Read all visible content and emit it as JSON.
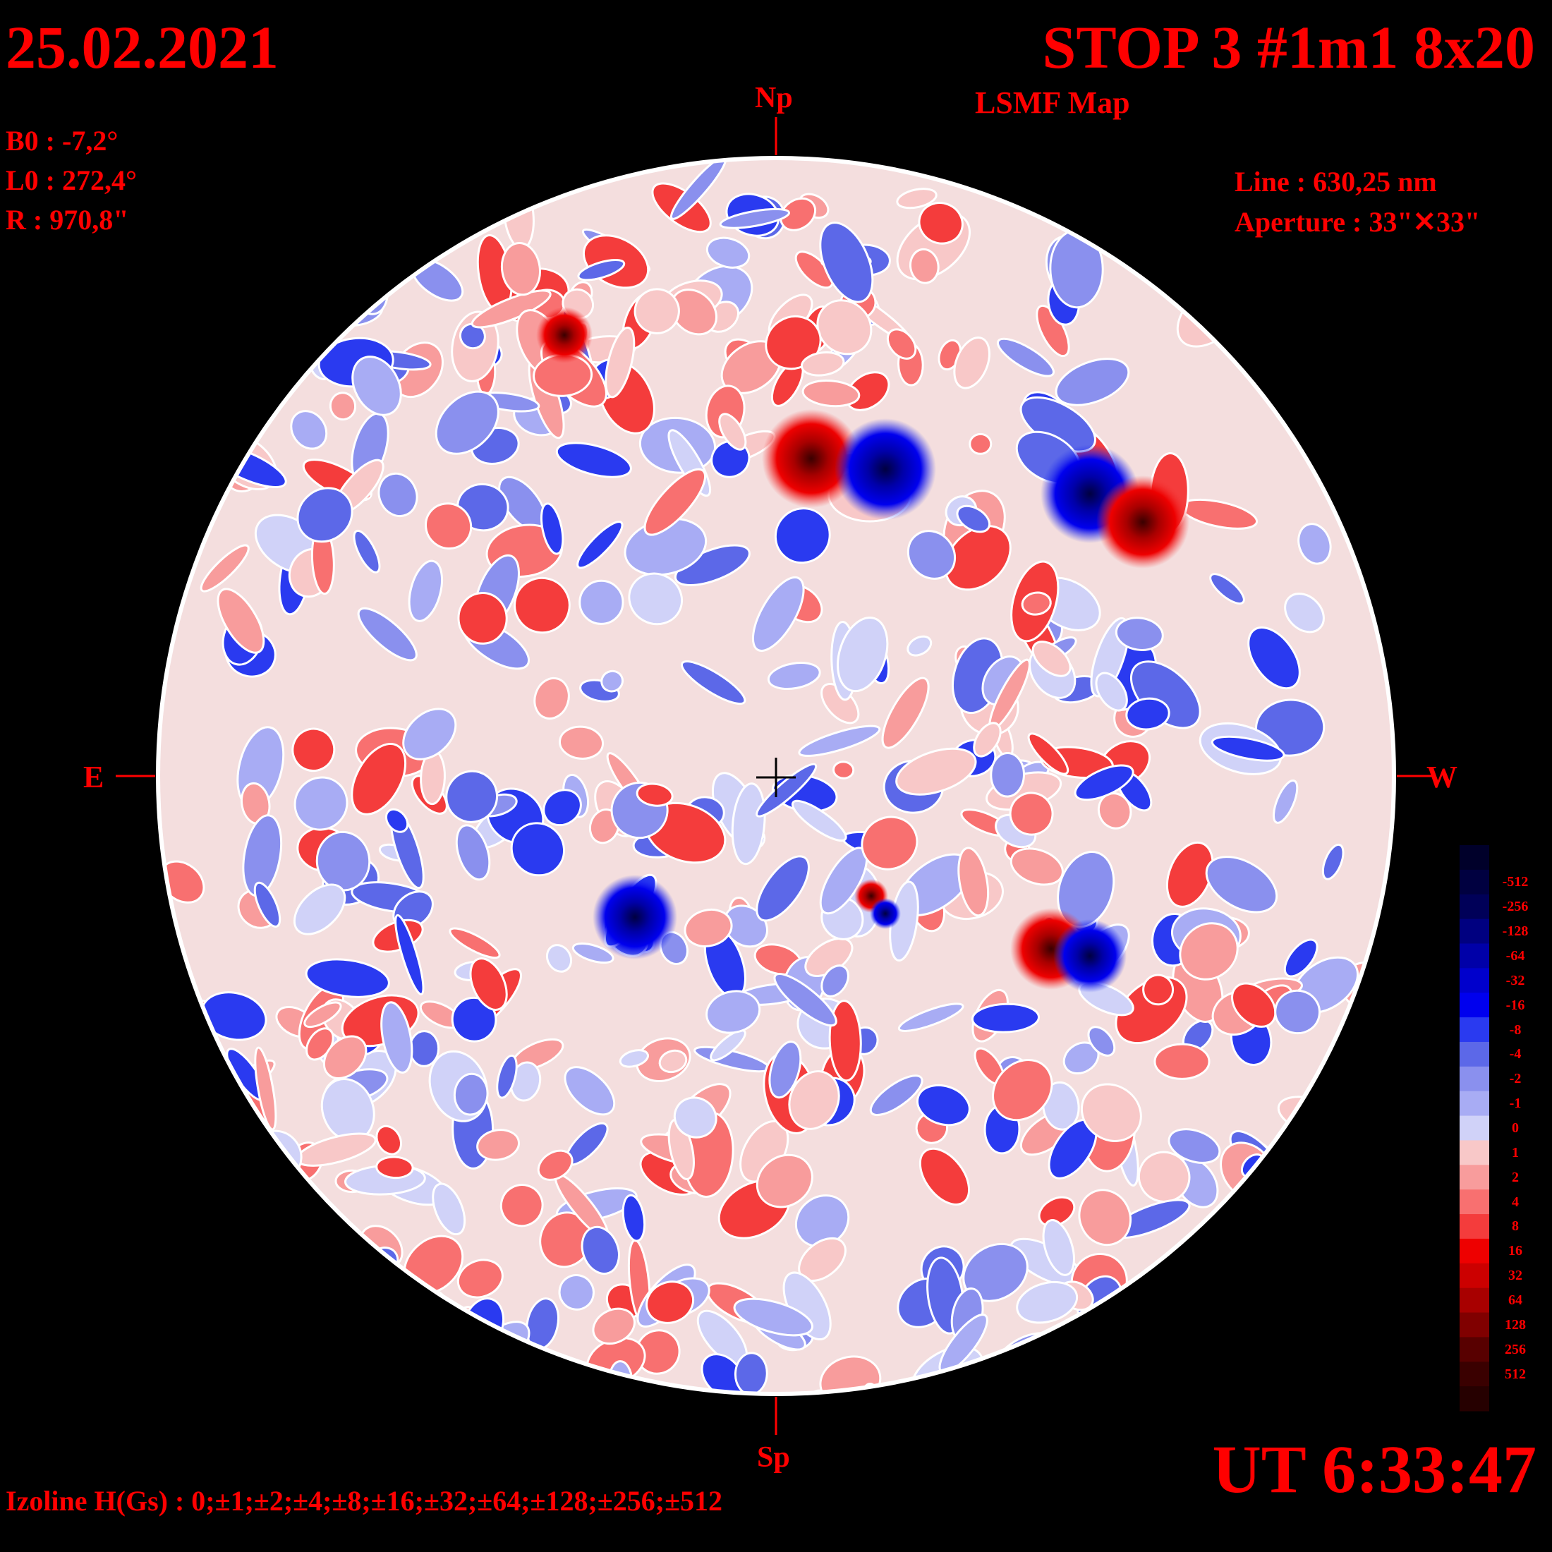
{
  "header": {
    "date": "25.02.2021",
    "title": "STOP 3 #1m1 8x20",
    "subtitle": "LSMF  Map"
  },
  "params": {
    "b0": "B0 : -7,2°",
    "l0": "L0 : 272,4°",
    "radius": "R  : 970,8\"",
    "line": "Line :  630,25 nm",
    "aperture": "Aperture : 33\"✕33\""
  },
  "directions": {
    "north": "Np",
    "south": "Sp",
    "east": "E",
    "west": "W"
  },
  "footer": {
    "ut": "UT 6:33:47",
    "isolines": "Izoline H(Gs) : 0;±1;±2;±4;±8;±16;±32;±64;±128;±256;±512"
  },
  "legend": {
    "levels": [
      {
        "label": "",
        "color": "#00002a"
      },
      {
        "label": "-512",
        "color": "#000040"
      },
      {
        "label": "-256",
        "color": "#000058"
      },
      {
        "label": "-128",
        "color": "#000080"
      },
      {
        "label": "-64",
        "color": "#0000a8"
      },
      {
        "label": "-32",
        "color": "#0000cc"
      },
      {
        "label": "-16",
        "color": "#0000ee"
      },
      {
        "label": "-8",
        "color": "#2a3af0"
      },
      {
        "label": "-4",
        "color": "#5c68e8"
      },
      {
        "label": "-2",
        "color": "#8a90ee"
      },
      {
        "label": "-1",
        "color": "#a8acf4"
      },
      {
        "label": "0",
        "color": "#d0d2f8"
      },
      {
        "label": "1",
        "color": "#f8c8c8"
      },
      {
        "label": "2",
        "color": "#f89c9c"
      },
      {
        "label": "4",
        "color": "#f87070"
      },
      {
        "label": "8",
        "color": "#f43c3c"
      },
      {
        "label": "16",
        "color": "#ee0000"
      },
      {
        "label": "32",
        "color": "#cc0000"
      },
      {
        "label": "64",
        "color": "#a80000"
      },
      {
        "label": "128",
        "color": "#800000"
      },
      {
        "label": "256",
        "color": "#580000"
      },
      {
        "label": "512",
        "color": "#3a0000"
      },
      {
        "label": "",
        "color": "#260000"
      }
    ]
  },
  "colors": {
    "text": "#ff0000",
    "background": "#000000",
    "disk_border": "#ffffff"
  }
}
